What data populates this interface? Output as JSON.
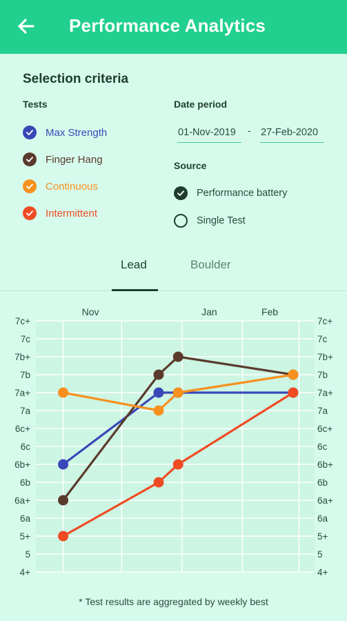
{
  "appbar": {
    "title": "Performance Analytics",
    "back_icon": "arrow-left-icon"
  },
  "selection": {
    "title": "Selection criteria",
    "tests_label": "Tests",
    "tests": [
      {
        "label": "Max Strength",
        "color": "#3a47b8",
        "checked": true
      },
      {
        "label": "Finger Hang",
        "color": "#5a3a2c",
        "checked": true
      },
      {
        "label": "Continuous",
        "color": "#f7901e",
        "checked": true
      },
      {
        "label": "Intermittent",
        "color": "#ef4b23",
        "checked": true
      }
    ],
    "date_label": "Date period",
    "date_from": "01-Nov-2019",
    "date_separator": "-",
    "date_to": "27-Feb-2020",
    "source_label": "Source",
    "sources": [
      {
        "label": "Performance battery",
        "selected": true
      },
      {
        "label": "Single Test",
        "selected": false
      }
    ]
  },
  "tabs": [
    {
      "label": "Lead",
      "active": true
    },
    {
      "label": "Boulder",
      "active": false
    }
  ],
  "footnote": "* Test results are aggregated by weekly best",
  "colors": {
    "accent": "#21d08f",
    "background": "#d6fbec",
    "chart_background": "#cdf5e3",
    "dark_green": "#1f3c2f"
  },
  "chart_data": {
    "type": "line",
    "x_ticks": [
      "Nov",
      "Jan",
      "Feb"
    ],
    "y_ticks": [
      "4+",
      "5",
      "5+",
      "6a",
      "6a+",
      "6b",
      "6b+",
      "6c",
      "6c+",
      "7a",
      "7a+",
      "7b",
      "7b+",
      "7c",
      "7c+"
    ],
    "ylim": [
      "4+",
      "7c+"
    ],
    "grid": true,
    "series": [
      {
        "name": "Max Strength",
        "color": "#3a47b8",
        "points": [
          {
            "x": "2019-11-01",
            "y": "6b+"
          },
          {
            "x": "2019-12-20",
            "y": "7a+"
          },
          {
            "x": "2019-12-30",
            "y": "7a+"
          },
          {
            "x": "2020-02-27",
            "y": "7a+"
          }
        ]
      },
      {
        "name": "Finger Hang",
        "color": "#5a3a2c",
        "points": [
          {
            "x": "2019-11-01",
            "y": "6a+"
          },
          {
            "x": "2019-12-20",
            "y": "7b"
          },
          {
            "x": "2019-12-30",
            "y": "7b+"
          },
          {
            "x": "2020-02-27",
            "y": "7b"
          }
        ]
      },
      {
        "name": "Continuous",
        "color": "#f7901e",
        "points": [
          {
            "x": "2019-11-01",
            "y": "7a+"
          },
          {
            "x": "2019-12-20",
            "y": "7a"
          },
          {
            "x": "2019-12-30",
            "y": "7a+"
          },
          {
            "x": "2020-02-27",
            "y": "7b"
          }
        ]
      },
      {
        "name": "Intermittent",
        "color": "#ef4b23",
        "points": [
          {
            "x": "2019-11-01",
            "y": "5+"
          },
          {
            "x": "2019-12-20",
            "y": "6b"
          },
          {
            "x": "2019-12-30",
            "y": "6b+"
          },
          {
            "x": "2020-02-27",
            "y": "7a+"
          }
        ]
      }
    ]
  }
}
